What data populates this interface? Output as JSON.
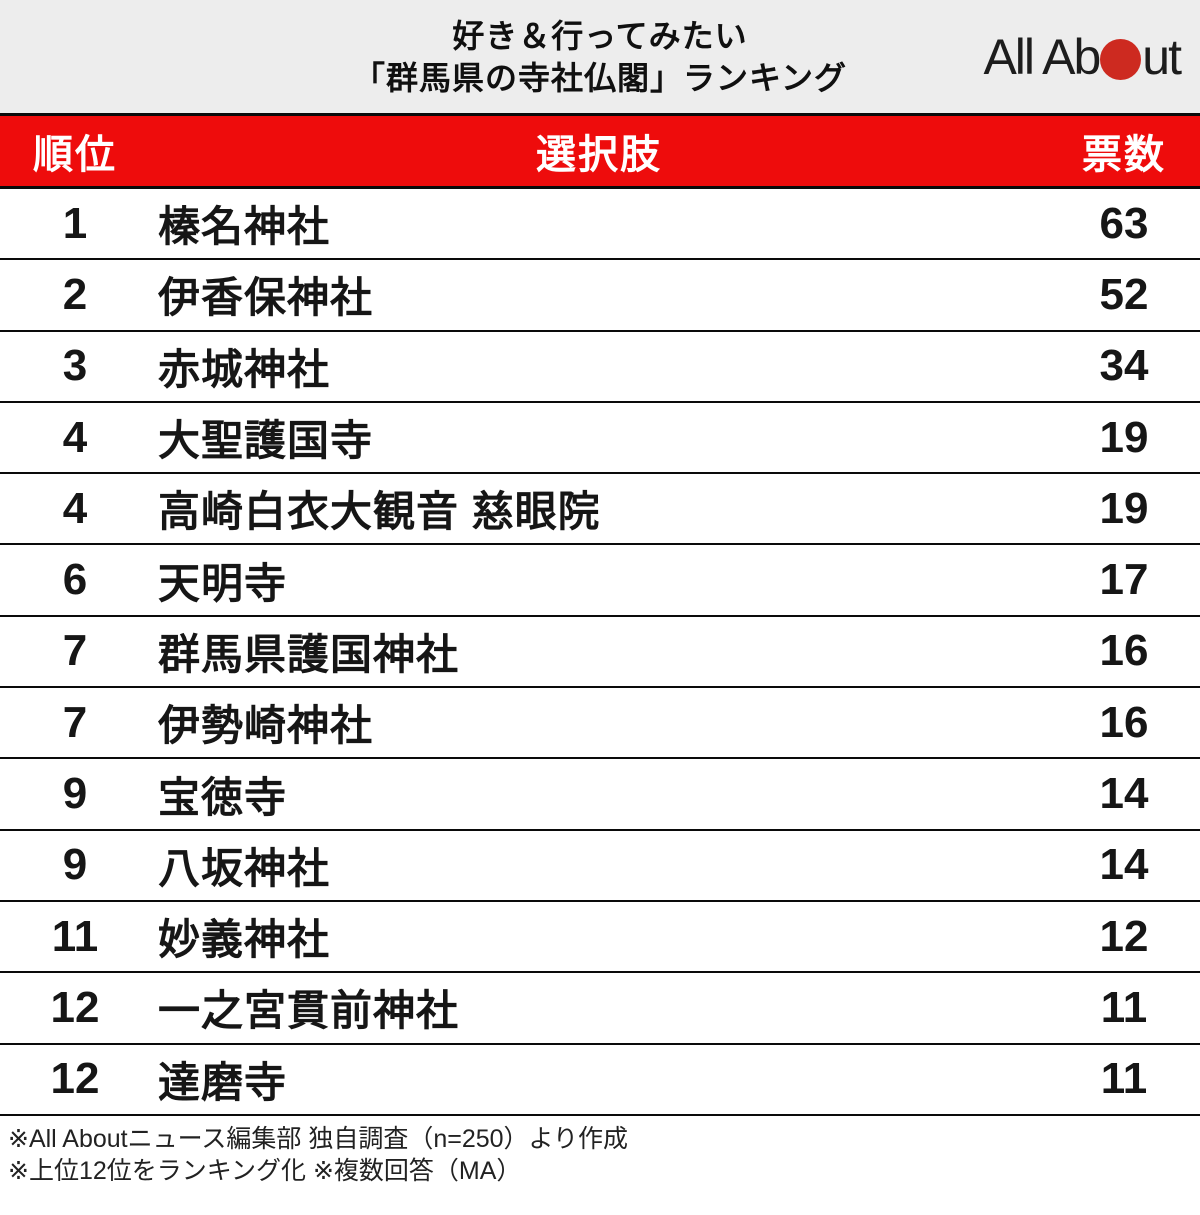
{
  "header": {
    "title_line1": "好き＆行ってみたい",
    "title_line2": "「群馬県の寺社仏閣」ランキング",
    "logo_text_left": "All Ab",
    "logo_text_right": "ut",
    "logo_name": "All About"
  },
  "table": {
    "columns": {
      "rank": "順位",
      "choice": "選択肢",
      "votes": "票数"
    },
    "rows": [
      {
        "rank": "1",
        "name": "榛名神社",
        "votes": "63"
      },
      {
        "rank": "2",
        "name": "伊香保神社",
        "votes": "52"
      },
      {
        "rank": "3",
        "name": "赤城神社",
        "votes": "34"
      },
      {
        "rank": "4",
        "name": "大聖護国寺",
        "votes": "19"
      },
      {
        "rank": "4",
        "name": "高崎白衣大観音 慈眼院",
        "votes": "19"
      },
      {
        "rank": "6",
        "name": "天明寺",
        "votes": "17"
      },
      {
        "rank": "7",
        "name": "群馬県護国神社",
        "votes": "16"
      },
      {
        "rank": "7",
        "name": "伊勢崎神社",
        "votes": "16"
      },
      {
        "rank": "9",
        "name": "宝徳寺",
        "votes": "14"
      },
      {
        "rank": "9",
        "name": "八坂神社",
        "votes": "14"
      },
      {
        "rank": "11",
        "name": "妙義神社",
        "votes": "12"
      },
      {
        "rank": "12",
        "name": "一之宮貫前神社",
        "votes": "11"
      },
      {
        "rank": "12",
        "name": "達磨寺",
        "votes": "11"
      }
    ]
  },
  "footer": {
    "note1": "※All Aboutニュース編集部 独自調査（n=250）より作成",
    "note2": "※上位12位をランキング化 ※複数回答（MA）"
  },
  "colors": {
    "table_header_bg": "#ee0c0c",
    "logo_circle_red": "#cd2a20",
    "top_header_bg": "#ededed",
    "separator": "#0a0a0a"
  },
  "chart_data": {
    "type": "table",
    "title": "好き＆行ってみたい「群馬県の寺社仏閣」ランキング",
    "columns": [
      "順位",
      "選択肢",
      "票数"
    ],
    "rows": [
      [
        1,
        "榛名神社",
        63
      ],
      [
        2,
        "伊香保神社",
        52
      ],
      [
        3,
        "赤城神社",
        34
      ],
      [
        4,
        "大聖護国寺",
        19
      ],
      [
        4,
        "高崎白衣大観音 慈眼院",
        19
      ],
      [
        6,
        "天明寺",
        17
      ],
      [
        7,
        "群馬県護国神社",
        16
      ],
      [
        7,
        "伊勢崎神社",
        16
      ],
      [
        9,
        "宝徳寺",
        14
      ],
      [
        9,
        "八坂神社",
        14
      ],
      [
        11,
        "妙義神社",
        12
      ],
      [
        12,
        "一之宮貫前神社",
        11
      ],
      [
        12,
        "達磨寺",
        11
      ]
    ],
    "notes": [
      "※All Aboutニュース編集部 独自調査（n=250）より作成",
      "※上位12位をランキング化 ※複数回答（MA）"
    ]
  }
}
